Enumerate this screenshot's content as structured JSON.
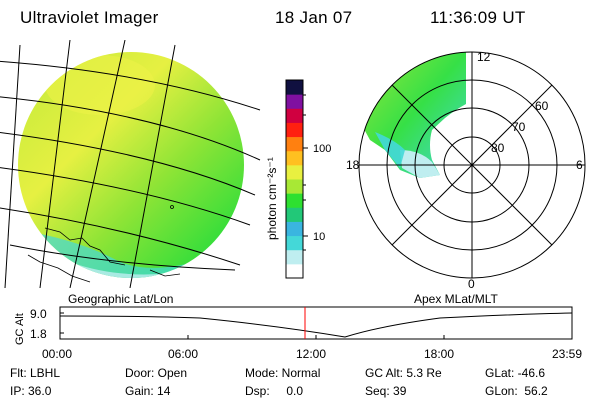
{
  "header": {
    "title": "Ultraviolet Imager",
    "date": "18 Jan 07",
    "time": "11:36:09 UT"
  },
  "colorbar": {
    "unit_label": "photon cm⁻²s⁻¹",
    "ticks": [
      "100",
      "10"
    ],
    "scale": "log",
    "colors": [
      "#ffffff",
      "#bfeef0",
      "#44d8d8",
      "#3ab5e0",
      "#22c878",
      "#2ee030",
      "#a8e835",
      "#e8f040",
      "#ffc020",
      "#ff8010",
      "#ff2010",
      "#d00040",
      "#8010a0",
      "#101040"
    ]
  },
  "left_panel": {
    "caption": "Geographic Lat/Lon",
    "fill_colors": [
      "#a8e835",
      "#e8f040",
      "#2ee030",
      "#44d8d8"
    ]
  },
  "right_panel": {
    "caption": "Apex MLat/MLT",
    "mlt_labels": {
      "top": "12",
      "bottom": "0",
      "left": "18",
      "right": "6"
    },
    "lat_labels": [
      "60",
      "70",
      "80"
    ]
  },
  "altitude_plot": {
    "ylabel": "GC Alt",
    "yticks": [
      "9.0",
      "1.8"
    ],
    "xticks": [
      "00:00",
      "06:00",
      "12:00",
      "18:00",
      "23:59"
    ],
    "current_time_line_color": "#ff0000"
  },
  "status": {
    "row1": [
      {
        "label": "Flt: LBHL"
      },
      {
        "label": "Door: Open"
      },
      {
        "label": "Mode: Normal"
      },
      {
        "label": "GC Alt: 5.3 Re"
      },
      {
        "label": "GLat: -46.6"
      }
    ],
    "row2": [
      {
        "label": "IP: 36.0"
      },
      {
        "label": "Gain: 14"
      },
      {
        "label": "Dsp:     0.0"
      },
      {
        "label": "Seq: 39"
      },
      {
        "label": "GLon:  56.2"
      }
    ]
  }
}
